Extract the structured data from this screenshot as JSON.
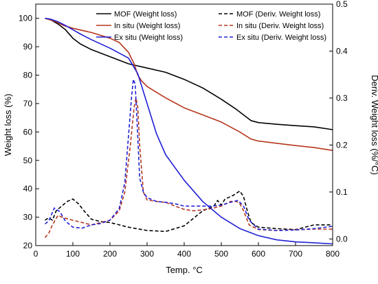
{
  "chart_data": {
    "type": "line",
    "title": "",
    "xlabel": "Temp. °C",
    "ylabel_left": "Weight loss (%)",
    "ylabel_right": "Deriv. Weight loss (%/°C)",
    "xlim": [
      0,
      800
    ],
    "ylim_left": [
      20,
      105
    ],
    "ylim_right": [
      -0.0141,
      0.5
    ],
    "x_ticks": [
      0,
      100,
      200,
      300,
      400,
      500,
      600,
      700,
      800
    ],
    "y_left_ticks": [
      20,
      30,
      40,
      50,
      60,
      70,
      80,
      90,
      100
    ],
    "y_right_ticks": [
      0.0,
      0.1,
      0.2,
      0.3,
      0.4,
      0.5
    ],
    "y_right_tick_labels": [
      "0.0",
      "0.1",
      "0.2",
      "0.3",
      "0.4",
      "0.5"
    ],
    "grid": false,
    "legend_position": "top",
    "series": [
      {
        "name": "MOF (Weight loss)",
        "axis": "left",
        "color": "#000000",
        "style": "solid",
        "x": [
          25,
          40,
          60,
          80,
          100,
          120,
          150,
          200,
          250,
          300,
          350,
          400,
          450,
          500,
          540,
          560,
          580,
          600,
          650,
          700,
          750,
          800
        ],
        "y": [
          100,
          99.5,
          98,
          96,
          93,
          91,
          89,
          86.5,
          84,
          82.5,
          81,
          78.5,
          75.5,
          71.5,
          68,
          66,
          64,
          63.3,
          62.7,
          62.2,
          61.8,
          60.8
        ]
      },
      {
        "name": "MOF (Deriv. Weight loss)",
        "axis": "right",
        "color": "#000000",
        "style": "dashed",
        "x": [
          25,
          35,
          45,
          55,
          70,
          85,
          100,
          115,
          130,
          150,
          175,
          200,
          250,
          300,
          350,
          400,
          450,
          480,
          490,
          500,
          510,
          530,
          550,
          560,
          570,
          580,
          600,
          650,
          700,
          750,
          800
        ],
        "y": [
          0.04,
          0.045,
          0.04,
          0.06,
          0.07,
          0.08,
          0.085,
          0.075,
          0.06,
          0.042,
          0.037,
          0.035,
          0.025,
          0.018,
          0.016,
          0.028,
          0.06,
          0.07,
          0.082,
          0.072,
          0.085,
          0.092,
          0.102,
          0.09,
          0.06,
          0.035,
          0.025,
          0.022,
          0.02,
          0.03,
          0.03
        ]
      },
      {
        "name": "In situ (Weight loss)",
        "axis": "left",
        "color": "#b5351c",
        "style": "solid",
        "x": [
          25,
          50,
          75,
          100,
          150,
          200,
          225,
          250,
          265,
          275,
          285,
          300,
          350,
          400,
          450,
          500,
          550,
          580,
          600,
          650,
          700,
          750,
          800
        ],
        "y": [
          100,
          99,
          97.5,
          96.5,
          95,
          93,
          91.5,
          88,
          84,
          80,
          78,
          76,
          72,
          68.5,
          66,
          63.5,
          60,
          57.5,
          56.8,
          56,
          55.2,
          54.5,
          53.5
        ]
      },
      {
        "name": "In situ (Deriv. Weight loss)",
        "axis": "right",
        "color": "#b5351c",
        "style": "dashed",
        "x": [
          25,
          35,
          45,
          60,
          75,
          100,
          125,
          150,
          175,
          200,
          225,
          240,
          255,
          265,
          270,
          275,
          280,
          290,
          300,
          325,
          350,
          375,
          400,
          425,
          450,
          475,
          500,
          525,
          540,
          550,
          560,
          575,
          600,
          650,
          700,
          750,
          800
        ],
        "y": [
          0.003,
          0.012,
          0.03,
          0.05,
          0.045,
          0.04,
          0.035,
          0.03,
          0.035,
          0.04,
          0.06,
          0.1,
          0.2,
          0.28,
          0.3,
          0.28,
          0.2,
          0.1,
          0.083,
          0.08,
          0.078,
          0.07,
          0.063,
          0.06,
          0.062,
          0.065,
          0.07,
          0.08,
          0.08,
          0.075,
          0.06,
          0.03,
          0.02,
          0.018,
          0.02,
          0.021,
          0.021
        ]
      },
      {
        "name": "Ex situ (Weight loss)",
        "axis": "left",
        "color": "#1f1fd6",
        "style": "solid",
        "x": [
          25,
          40,
          60,
          80,
          100,
          120,
          150,
          200,
          250,
          275,
          300,
          325,
          350,
          400,
          450,
          500,
          550,
          600,
          650,
          700,
          750,
          800
        ],
        "y": [
          100,
          99.7,
          98.8,
          97.5,
          96,
          94.5,
          92.5,
          89.5,
          86,
          80.5,
          70,
          59.5,
          52,
          43,
          35.5,
          30,
          26,
          23.5,
          22,
          21.3,
          21,
          20.6
        ]
      },
      {
        "name": "Ex situ (Deriv. Weight loss)",
        "axis": "right",
        "color": "#1f1fd6",
        "style": "dashed",
        "x": [
          25,
          35,
          50,
          65,
          80,
          100,
          125,
          150,
          175,
          200,
          225,
          240,
          250,
          258,
          263,
          268,
          273,
          280,
          290,
          300,
          325,
          350,
          375,
          400,
          425,
          450,
          475,
          500,
          525,
          545,
          560,
          575,
          600,
          650,
          700,
          750,
          800
        ],
        "y": [
          0.032,
          0.038,
          0.066,
          0.058,
          0.038,
          0.025,
          0.023,
          0.03,
          0.033,
          0.04,
          0.065,
          0.12,
          0.22,
          0.3,
          0.34,
          0.33,
          0.25,
          0.13,
          0.1,
          0.088,
          0.08,
          0.078,
          0.075,
          0.07,
          0.07,
          0.07,
          0.07,
          0.072,
          0.078,
          0.082,
          0.07,
          0.04,
          0.021,
          0.018,
          0.019,
          0.022,
          0.027
        ]
      }
    ]
  }
}
